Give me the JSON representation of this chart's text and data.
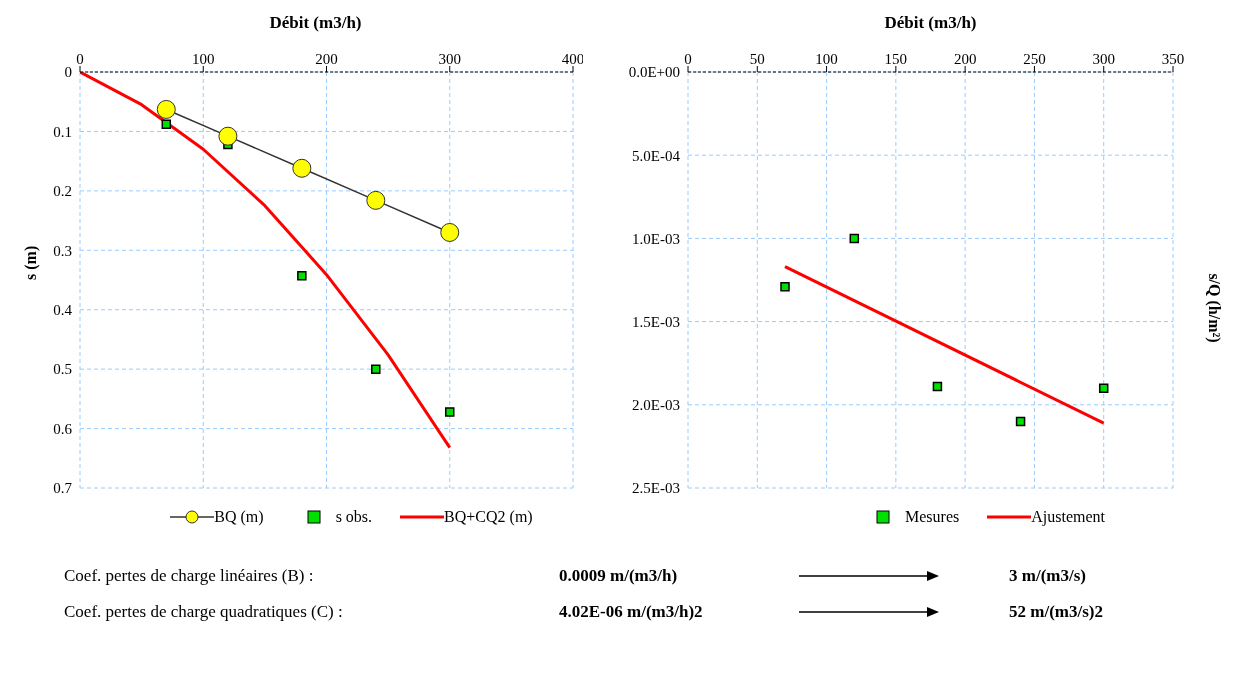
{
  "chart_data": [
    {
      "type": "line",
      "xlabel": "Débit (m3/h)",
      "ylabel": "s (m)",
      "xlim": [
        0,
        400
      ],
      "xticks": [
        0,
        100,
        200,
        300,
        400
      ],
      "ylim": [
        0.7,
        0
      ],
      "yticks": [
        0,
        0.1,
        0.2,
        0.3,
        0.4,
        0.5,
        0.6,
        0.7
      ],
      "grid": true,
      "legend": "bottom",
      "series": [
        {
          "name": "BQ (m)",
          "marker": "circle",
          "color": "#ffff00",
          "x": [
            70,
            120,
            180,
            240,
            300
          ],
          "values": [
            0.063,
            0.108,
            0.162,
            0.216,
            0.27
          ]
        },
        {
          "name": "s obs.",
          "type": "scatter",
          "marker": "square",
          "color": "#00e000",
          "x": [
            70,
            120,
            180,
            240,
            300
          ],
          "values": [
            0.088,
            0.122,
            0.343,
            0.5,
            0.572
          ]
        },
        {
          "name": "BQ+CQ2 (m)",
          "marker": "none",
          "color": "#ff0000",
          "x": [
            0,
            50,
            100,
            150,
            200,
            250,
            300
          ],
          "values": [
            0,
            0.055,
            0.13,
            0.225,
            0.341,
            0.476,
            0.632
          ]
        }
      ],
      "annotations": [
        "Coef. pertes de charge linéaires (B) :",
        "0.0009 m/(m3/h)",
        "3 m/(m3/s)",
        "Coef. pertes de charge quadratiques  (C) :",
        "4.02E-06 m/(m3/h)2",
        "52  m/(m3/s)2"
      ]
    },
    {
      "type": "scatter",
      "xlabel": "Débit (m3/h)",
      "ylabel": "s/Q (h/m²)",
      "xlim": [
        0,
        350
      ],
      "xticks": [
        0,
        50,
        100,
        150,
        200,
        250,
        300,
        350
      ],
      "ylim": [
        0.0025,
        0
      ],
      "yticks": [
        {
          "value": 0,
          "label": "0.0E+00"
        },
        {
          "value": 0.0005,
          "label": "5.0E-04"
        },
        {
          "value": 0.001,
          "label": "1.0E-03"
        },
        {
          "value": 0.0015,
          "label": "1.5E-03"
        },
        {
          "value": 0.002,
          "label": "2.0E-03"
        },
        {
          "value": 0.0025,
          "label": "2.5E-03"
        }
      ],
      "grid": true,
      "legend": "bottom",
      "series": [
        {
          "name": "Mesures",
          "marker": "square",
          "color": "#00e000",
          "x": [
            70,
            120,
            180,
            240,
            300
          ],
          "values": [
            0.00129,
            0.001,
            0.00189,
            0.0021,
            0.0019
          ]
        },
        {
          "name": "Ajustement",
          "type": "line",
          "marker": "none",
          "color": "#ff0000",
          "x": [
            70,
            300
          ],
          "values": [
            0.00117,
            0.00211
          ]
        }
      ]
    }
  ]
}
